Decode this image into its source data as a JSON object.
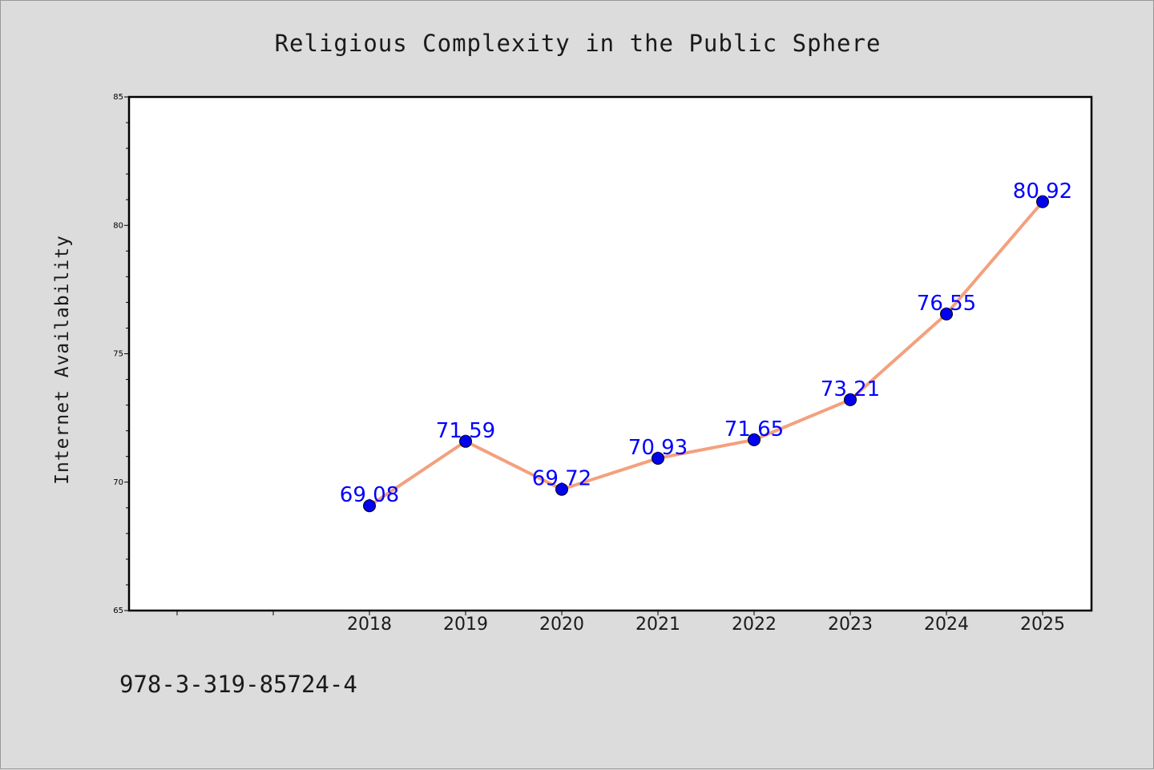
{
  "chart_data": {
    "type": "line",
    "title": "Religious Complexity in the Public Sphere",
    "xlabel": "",
    "ylabel": "Internet Availability",
    "categories": [
      "2018",
      "2019",
      "2020",
      "2021",
      "2022",
      "2023",
      "2024",
      "2025"
    ],
    "series": [
      {
        "values": [
          69.08,
          71.59,
          69.72,
          70.93,
          71.65,
          73.21,
          76.55,
          80.92
        ],
        "line_color": "#f4a07e",
        "marker_color": "#0000ee"
      }
    ],
    "data_labels": [
      "69.08",
      "71.59",
      "69.72",
      "70.93",
      "71.65",
      "73.21",
      "76.55",
      "80.92"
    ],
    "ylim": [
      65,
      85
    ],
    "yticks": [
      "65",
      "70",
      "75",
      "80",
      "85"
    ],
    "y_minor_step": 1,
    "grid": false,
    "legend": "none"
  },
  "isbn": "978-3-319-85724-4",
  "colors": {
    "background": "#dcdcdc",
    "plot_background": "#ffffff",
    "data_label": "#0000ff"
  }
}
